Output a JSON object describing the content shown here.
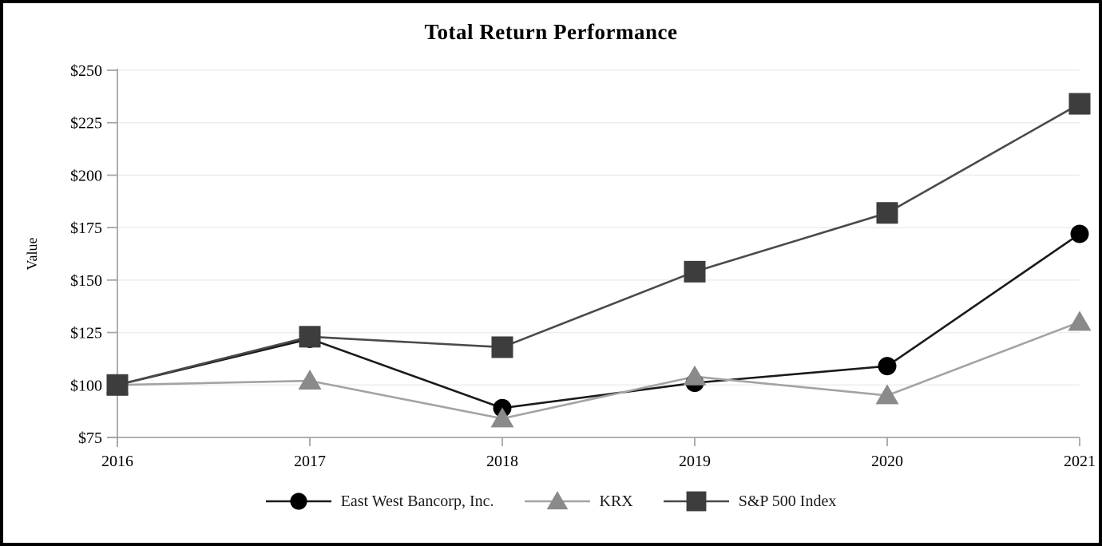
{
  "chart_data": {
    "type": "line",
    "title": "Total Return Performance",
    "xlabel": "",
    "ylabel": "Value",
    "categories": [
      "2016",
      "2017",
      "2018",
      "2019",
      "2020",
      "2021"
    ],
    "series": [
      {
        "name": "East West Bancorp, Inc.",
        "marker": "circle",
        "line_color": "#1a1a1a",
        "marker_color": "#000000",
        "values": [
          100,
          122,
          89,
          101,
          109,
          172
        ]
      },
      {
        "name": "KRX",
        "marker": "triangle",
        "line_color": "#a3a3a3",
        "marker_color": "#8a8a8a",
        "values": [
          100,
          102,
          84,
          104,
          95,
          130
        ]
      },
      {
        "name": "S&P 500 Index",
        "marker": "square",
        "line_color": "#4a4a4a",
        "marker_color": "#3d3d3d",
        "values": [
          100,
          123,
          118,
          154,
          182,
          234
        ]
      }
    ],
    "y_ticks": [
      75,
      100,
      125,
      150,
      175,
      200,
      225,
      250
    ],
    "y_tick_labels": [
      "$75",
      "$100",
      "$125",
      "$150",
      "$175",
      "$200",
      "$225",
      "$250"
    ],
    "ylim": [
      75,
      250
    ],
    "grid": true,
    "legend_position": "bottom",
    "axis_color": "#a6a6a6",
    "grid_color": "#ededed",
    "text_color": "#000000"
  }
}
